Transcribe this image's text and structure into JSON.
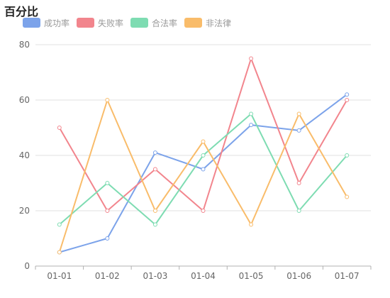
{
  "chart_data": {
    "type": "line",
    "title": "百分比",
    "categories": [
      "01-01",
      "01-02",
      "01-03",
      "01-04",
      "01-05",
      "01-06",
      "01-07"
    ],
    "ylim": [
      0,
      80
    ],
    "yticks": [
      0,
      20,
      40,
      60,
      80
    ],
    "grid": true,
    "legend_position": "top-left",
    "series": [
      {
        "name": "成功率",
        "color": "#7ca3ea",
        "values": [
          5,
          10,
          41,
          35,
          51,
          49,
          62
        ]
      },
      {
        "name": "失败率",
        "color": "#f2858d",
        "values": [
          50,
          20,
          35,
          20,
          75,
          30,
          60
        ]
      },
      {
        "name": "合法率",
        "color": "#7edcb2",
        "values": [
          15,
          30,
          15,
          40,
          55,
          20,
          40
        ]
      },
      {
        "name": "非法律",
        "color": "#f9bc6a",
        "values": [
          5,
          60,
          20,
          45,
          15,
          55,
          25
        ]
      }
    ]
  }
}
